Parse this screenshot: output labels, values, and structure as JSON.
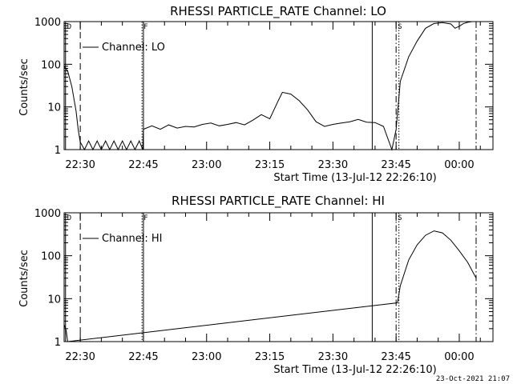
{
  "footer_timestamp": "23-Oct-2021 21:07",
  "chart_data": [
    {
      "type": "line",
      "title": "RHESSI PARTICLE_RATE Channel: LO",
      "xlabel": "Start Time (13-Jul-12 22:26:10)",
      "ylabel": "Counts/sec",
      "yscale": "log",
      "ylim": [
        1,
        1000
      ],
      "xlim": [
        "22:26:10",
        "00:08:00"
      ],
      "x_ticks": [
        "22:30",
        "22:45",
        "23:00",
        "23:15",
        "23:30",
        "23:45",
        "00:00"
      ],
      "y_ticks": [
        "1",
        "10",
        "100",
        "1000"
      ],
      "legend": "Channel: LO",
      "legend_placement": "top-left",
      "grid": false,
      "markers": [
        {
          "label": "D",
          "time": "22:26:30",
          "style": "solid"
        },
        {
          "label": "",
          "time": "22:30:00",
          "style": "dashed"
        },
        {
          "label": "F",
          "time": "22:44:40",
          "style": "dotted"
        },
        {
          "label": "",
          "time": "22:45:00",
          "style": "solid"
        },
        {
          "label": "",
          "time": "23:39:20",
          "style": "solid"
        },
        {
          "label": "S",
          "time": "23:45:00",
          "style": "dashdot"
        },
        {
          "label": "",
          "time": "23:45:40",
          "style": "dotted"
        },
        {
          "label": "",
          "time": "00:04:00",
          "style": "dashdot"
        }
      ],
      "series": [
        {
          "name": "Channel: LO",
          "x": [
            "22:26:10",
            "22:27:00",
            "22:28:00",
            "22:29:00",
            "22:29:30",
            "22:30:00",
            "22:31:00",
            "22:32:00",
            "22:33:00",
            "22:34:00",
            "22:35:00",
            "22:36:00",
            "22:37:00",
            "22:38:00",
            "22:39:00",
            "22:40:00",
            "22:41:00",
            "22:42:00",
            "22:43:00",
            "22:44:00",
            "22:44:50",
            "22:45:00",
            "22:47:00",
            "22:49:00",
            "22:51:00",
            "22:53:00",
            "22:55:00",
            "22:57:00",
            "22:59:00",
            "23:01:00",
            "23:03:00",
            "23:05:00",
            "23:07:00",
            "23:09:00",
            "23:11:00",
            "23:13:00",
            "23:15:00",
            "23:17:00",
            "23:18:00",
            "23:20:00",
            "23:22:00",
            "23:24:00",
            "23:26:00",
            "23:28:00",
            "23:30:00",
            "23:32:00",
            "23:34:00",
            "23:36:00",
            "23:38:00",
            "23:40:00",
            "23:42:00",
            "23:44:00",
            "23:45:00",
            "23:46:00",
            "23:48:00",
            "23:50:00",
            "23:52:00",
            "23:54:00",
            "23:56:00",
            "23:58:00",
            "23:59:00",
            "00:00:00",
            "00:01:00",
            "00:02:00",
            "00:03:00",
            "00:04:00"
          ],
          "y": [
            90,
            70,
            30,
            8,
            3,
            1.5,
            1.0,
            1.6,
            1.0,
            1.6,
            1.0,
            1.6,
            1.0,
            1.6,
            1.0,
            1.6,
            1.0,
            1.6,
            1.0,
            1.6,
            1.0,
            3.0,
            3.6,
            3.0,
            3.8,
            3.2,
            3.5,
            3.4,
            3.9,
            4.2,
            3.6,
            3.9,
            4.3,
            3.8,
            4.9,
            6.6,
            5.3,
            14,
            22,
            20,
            14,
            8.5,
            4.5,
            3.5,
            3.9,
            4.2,
            4.5,
            5.1,
            4.4,
            4.3,
            3.5,
            1.0,
            3.0,
            40,
            150,
            350,
            700,
            900,
            950,
            880,
            700,
            780,
            900,
            960,
            1000,
            1000
          ]
        }
      ]
    },
    {
      "type": "line",
      "title": "RHESSI PARTICLE_RATE Channel: HI",
      "xlabel": "Start Time (13-Jul-12 22:26:10)",
      "ylabel": "Counts/sec",
      "yscale": "log",
      "ylim": [
        1,
        1000
      ],
      "xlim": [
        "22:26:10",
        "00:08:00"
      ],
      "x_ticks": [
        "22:30",
        "22:45",
        "23:00",
        "23:15",
        "23:30",
        "23:45",
        "00:00"
      ],
      "y_ticks": [
        "1",
        "10",
        "100",
        "1000"
      ],
      "legend": "Channel: HI",
      "legend_placement": "top-left",
      "grid": false,
      "markers": [
        {
          "label": "D",
          "time": "22:26:30",
          "style": "solid"
        },
        {
          "label": "",
          "time": "22:30:00",
          "style": "dashed"
        },
        {
          "label": "F",
          "time": "22:44:40",
          "style": "dotted"
        },
        {
          "label": "",
          "time": "22:45:00",
          "style": "solid"
        },
        {
          "label": "",
          "time": "23:39:20",
          "style": "solid"
        },
        {
          "label": "S",
          "time": "23:45:00",
          "style": "dashdot"
        },
        {
          "label": "",
          "time": "23:45:40",
          "style": "dotted"
        },
        {
          "label": "",
          "time": "00:04:00",
          "style": "dashdot"
        }
      ],
      "series": [
        {
          "name": "Channel: HI",
          "x": [
            "22:26:10",
            "22:26:40",
            "22:27:00",
            "23:45:20",
            "23:46:00",
            "23:48:00",
            "23:50:00",
            "23:52:00",
            "23:54:00",
            "23:56:00",
            "23:58:00",
            "00:00:00",
            "00:02:00",
            "00:04:00"
          ],
          "y": [
            2.5,
            1.8,
            1.0,
            8,
            20,
            80,
            180,
            300,
            380,
            340,
            230,
            130,
            70,
            30
          ]
        }
      ]
    }
  ]
}
